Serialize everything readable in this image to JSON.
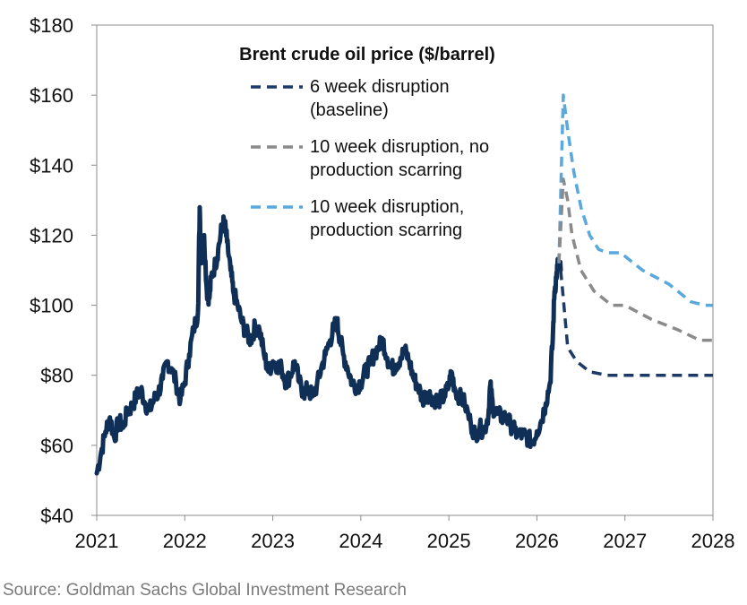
{
  "chart_data": {
    "type": "line",
    "title": "Brent crude oil price ($/barrel)",
    "xlabel": "",
    "ylabel": "",
    "xlim": [
      2021,
      2028
    ],
    "ylim": [
      40,
      180
    ],
    "x_ticks": [
      "2021",
      "2022",
      "2023",
      "2024",
      "2025",
      "2026",
      "2027",
      "2028"
    ],
    "y_ticks": [
      "$40",
      "$60",
      "$80",
      "$100",
      "$120",
      "$140",
      "$160",
      "$180"
    ],
    "grid": false,
    "legend_position": "top-center",
    "historical": {
      "color": "#0f2f57",
      "points": [
        [
          2021.0,
          52
        ],
        [
          2021.05,
          58
        ],
        [
          2021.1,
          64
        ],
        [
          2021.15,
          68
        ],
        [
          2021.2,
          62
        ],
        [
          2021.25,
          67
        ],
        [
          2021.3,
          65
        ],
        [
          2021.35,
          70
        ],
        [
          2021.4,
          71
        ],
        [
          2021.45,
          74
        ],
        [
          2021.5,
          76
        ],
        [
          2021.55,
          72
        ],
        [
          2021.6,
          70
        ],
        [
          2021.65,
          73
        ],
        [
          2021.7,
          75
        ],
        [
          2021.75,
          79
        ],
        [
          2021.8,
          84
        ],
        [
          2021.85,
          82
        ],
        [
          2021.9,
          78
        ],
        [
          2021.95,
          73
        ],
        [
          2022.0,
          78
        ],
        [
          2022.05,
          86
        ],
        [
          2022.1,
          93
        ],
        [
          2022.15,
          98
        ],
        [
          2022.17,
          128
        ],
        [
          2022.19,
          112
        ],
        [
          2022.22,
          120
        ],
        [
          2022.25,
          104
        ],
        [
          2022.28,
          102
        ],
        [
          2022.3,
          108
        ],
        [
          2022.35,
          112
        ],
        [
          2022.38,
          116
        ],
        [
          2022.42,
          122
        ],
        [
          2022.45,
          124
        ],
        [
          2022.48,
          118
        ],
        [
          2022.52,
          110
        ],
        [
          2022.55,
          104
        ],
        [
          2022.6,
          100
        ],
        [
          2022.65,
          95
        ],
        [
          2022.7,
          92
        ],
        [
          2022.75,
          90
        ],
        [
          2022.8,
          94
        ],
        [
          2022.85,
          93
        ],
        [
          2022.9,
          86
        ],
        [
          2022.95,
          81
        ],
        [
          2023.0,
          84
        ],
        [
          2023.05,
          83
        ],
        [
          2023.1,
          82
        ],
        [
          2023.15,
          78
        ],
        [
          2023.2,
          80
        ],
        [
          2023.25,
          84
        ],
        [
          2023.3,
          78
        ],
        [
          2023.35,
          75
        ],
        [
          2023.4,
          76
        ],
        [
          2023.45,
          74
        ],
        [
          2023.5,
          77
        ],
        [
          2023.55,
          82
        ],
        [
          2023.6,
          86
        ],
        [
          2023.65,
          90
        ],
        [
          2023.7,
          94
        ],
        [
          2023.73,
          95
        ],
        [
          2023.76,
          91
        ],
        [
          2023.8,
          86
        ],
        [
          2023.85,
          82
        ],
        [
          2023.9,
          78
        ],
        [
          2023.95,
          77
        ],
        [
          2024.0,
          78
        ],
        [
          2024.05,
          81
        ],
        [
          2024.1,
          83
        ],
        [
          2024.15,
          86
        ],
        [
          2024.2,
          88
        ],
        [
          2024.25,
          90
        ],
        [
          2024.3,
          85
        ],
        [
          2024.35,
          82
        ],
        [
          2024.4,
          83
        ],
        [
          2024.45,
          85
        ],
        [
          2024.5,
          87
        ],
        [
          2024.55,
          84
        ],
        [
          2024.6,
          79
        ],
        [
          2024.65,
          77
        ],
        [
          2024.7,
          73
        ],
        [
          2024.75,
          75
        ],
        [
          2024.8,
          74
        ],
        [
          2024.85,
          73
        ],
        [
          2024.9,
          73
        ],
        [
          2024.95,
          74
        ],
        [
          2025.0,
          77
        ],
        [
          2025.03,
          81
        ],
        [
          2025.07,
          76
        ],
        [
          2025.12,
          74
        ],
        [
          2025.18,
          72
        ],
        [
          2025.25,
          66
        ],
        [
          2025.3,
          63
        ],
        [
          2025.35,
          65
        ],
        [
          2025.4,
          64
        ],
        [
          2025.45,
          69
        ],
        [
          2025.47,
          77
        ],
        [
          2025.5,
          71
        ],
        [
          2025.55,
          69
        ],
        [
          2025.6,
          68
        ],
        [
          2025.65,
          68
        ],
        [
          2025.7,
          66
        ],
        [
          2025.75,
          64
        ],
        [
          2025.8,
          63
        ],
        [
          2025.85,
          63
        ],
        [
          2025.9,
          62
        ],
        [
          2025.95,
          61
        ],
        [
          2026.0,
          64
        ],
        [
          2026.05,
          67
        ],
        [
          2026.1,
          72
        ],
        [
          2026.15,
          78
        ],
        [
          2026.18,
          90
        ],
        [
          2026.2,
          104
        ],
        [
          2026.22,
          108
        ],
        [
          2026.24,
          112
        ],
        [
          2026.27,
          110
        ]
      ]
    },
    "series": [
      {
        "name": "6 week disruption\n(baseline)",
        "color": "#1b3a66",
        "points": [
          [
            2026.27,
            110
          ],
          [
            2026.3,
            102
          ],
          [
            2026.35,
            88
          ],
          [
            2026.45,
            84
          ],
          [
            2026.6,
            81
          ],
          [
            2026.8,
            80
          ],
          [
            2027.0,
            80
          ],
          [
            2027.5,
            80
          ],
          [
            2028.0,
            80
          ]
        ]
      },
      {
        "name": "10 week disruption, no\nproduction scarring",
        "color": "#8a8a8a",
        "points": [
          [
            2026.25,
            112
          ],
          [
            2026.3,
            136
          ],
          [
            2026.35,
            130
          ],
          [
            2026.4,
            120
          ],
          [
            2026.5,
            110
          ],
          [
            2026.65,
            104
          ],
          [
            2026.85,
            100
          ],
          [
            2027.0,
            100
          ],
          [
            2027.3,
            96
          ],
          [
            2027.6,
            93
          ],
          [
            2027.85,
            90
          ],
          [
            2028.0,
            90
          ]
        ]
      },
      {
        "name": "10 week disruption,\nproduction scarring",
        "color": "#5aa8dc",
        "points": [
          [
            2026.25,
            112
          ],
          [
            2026.3,
            160
          ],
          [
            2026.35,
            150
          ],
          [
            2026.42,
            138
          ],
          [
            2026.5,
            128
          ],
          [
            2026.6,
            120
          ],
          [
            2026.7,
            116
          ],
          [
            2026.8,
            115
          ],
          [
            2026.95,
            115
          ],
          [
            2027.2,
            110
          ],
          [
            2027.5,
            106
          ],
          [
            2027.75,
            101
          ],
          [
            2027.9,
            100
          ],
          [
            2028.0,
            100
          ]
        ]
      }
    ]
  },
  "source": "Source: Goldman Sachs Global Investment Research"
}
